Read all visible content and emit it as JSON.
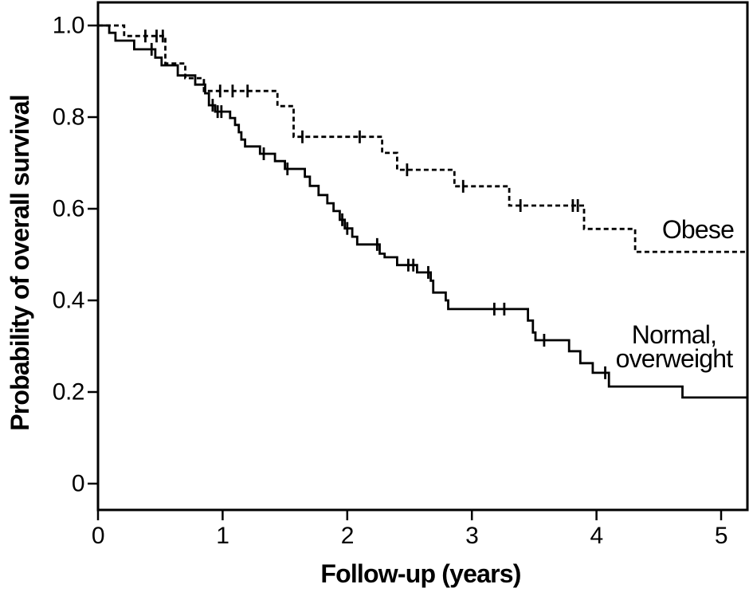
{
  "figure": {
    "background_color": "#ffffff",
    "line_color": "#000000"
  },
  "chart_data": {
    "type": "line",
    "chart_kind": "kaplan_meier_step_curves",
    "title": "",
    "xlabel": "Follow-up (years)",
    "ylabel": "Probability of overall survival",
    "xlim": [
      0,
      5.21
    ],
    "ylim": [
      0,
      1.0
    ],
    "grid": false,
    "legend_position": "on-plot-right",
    "x_ticks": [
      {
        "label": "0",
        "value": 0
      },
      {
        "label": "1",
        "value": 1
      },
      {
        "label": "2",
        "value": 2
      },
      {
        "label": "3",
        "value": 3
      },
      {
        "label": "4",
        "value": 4
      },
      {
        "label": "5",
        "value": 5
      }
    ],
    "y_ticks": [
      {
        "label": "1.0",
        "value": 1.0
      },
      {
        "label": "0.8",
        "value": 0.8
      },
      {
        "label": "0.6",
        "value": 0.6
      },
      {
        "label": "0.4",
        "value": 0.4
      },
      {
        "label": "0.2",
        "value": 0.2
      },
      {
        "label": "0",
        "value": 0.0
      }
    ],
    "series": [
      {
        "name": "Obese",
        "label_lines": [
          "Obese"
        ],
        "line_style": "dashed",
        "color": "#000000",
        "start": [
          0,
          1.0
        ],
        "end_time": 5.21,
        "steps": [
          [
            0.21,
            0.977
          ],
          [
            0.54,
            0.917
          ],
          [
            0.7,
            0.885
          ],
          [
            0.85,
            0.857
          ],
          [
            1.44,
            0.824
          ],
          [
            1.57,
            0.757
          ],
          [
            2.28,
            0.722
          ],
          [
            2.4,
            0.685
          ],
          [
            2.86,
            0.649
          ],
          [
            3.3,
            0.607
          ],
          [
            3.9,
            0.556
          ],
          [
            4.31,
            0.506
          ]
        ],
        "censor_marks": [
          [
            0.38,
            0.977
          ],
          [
            0.47,
            0.977
          ],
          [
            0.52,
            0.977
          ],
          [
            0.98,
            0.857
          ],
          [
            1.08,
            0.857
          ],
          [
            1.2,
            0.857
          ],
          [
            1.64,
            0.757
          ],
          [
            2.1,
            0.757
          ],
          [
            2.48,
            0.685
          ],
          [
            2.93,
            0.649
          ],
          [
            3.39,
            0.607
          ],
          [
            3.81,
            0.607
          ],
          [
            3.85,
            0.607
          ]
        ]
      },
      {
        "name": "Normal, overweight",
        "label_lines": [
          "Normal,",
          "overweight"
        ],
        "line_style": "solid",
        "color": "#000000",
        "start": [
          0,
          1.0
        ],
        "end_time": 5.21,
        "steps": [
          [
            0.09,
            0.984
          ],
          [
            0.14,
            0.967
          ],
          [
            0.29,
            0.948
          ],
          [
            0.46,
            0.93
          ],
          [
            0.51,
            0.913
          ],
          [
            0.64,
            0.891
          ],
          [
            0.78,
            0.871
          ],
          [
            0.86,
            0.852
          ],
          [
            0.89,
            0.826
          ],
          [
            0.94,
            0.812
          ],
          [
            1.06,
            0.798
          ],
          [
            1.1,
            0.783
          ],
          [
            1.13,
            0.767
          ],
          [
            1.15,
            0.751
          ],
          [
            1.18,
            0.736
          ],
          [
            1.3,
            0.72
          ],
          [
            1.42,
            0.704
          ],
          [
            1.5,
            0.687
          ],
          [
            1.66,
            0.67
          ],
          [
            1.7,
            0.65
          ],
          [
            1.77,
            0.63
          ],
          [
            1.84,
            0.612
          ],
          [
            1.89,
            0.595
          ],
          [
            1.94,
            0.576
          ],
          [
            1.98,
            0.557
          ],
          [
            2.04,
            0.539
          ],
          [
            2.08,
            0.522
          ],
          [
            2.26,
            0.502
          ],
          [
            2.3,
            0.494
          ],
          [
            2.4,
            0.477
          ],
          [
            2.56,
            0.461
          ],
          [
            2.67,
            0.443
          ],
          [
            2.69,
            0.417
          ],
          [
            2.79,
            0.4
          ],
          [
            2.81,
            0.381
          ],
          [
            3.45,
            0.356
          ],
          [
            3.49,
            0.33
          ],
          [
            3.51,
            0.313
          ],
          [
            3.78,
            0.289
          ],
          [
            3.87,
            0.263
          ],
          [
            3.97,
            0.242
          ],
          [
            4.1,
            0.212
          ],
          [
            4.69,
            0.188
          ]
        ],
        "censor_marks": [
          [
            0.43,
            0.948
          ],
          [
            0.92,
            0.826
          ],
          [
            0.96,
            0.812
          ],
          [
            0.99,
            0.812
          ],
          [
            1.33,
            0.72
          ],
          [
            1.52,
            0.687
          ],
          [
            1.96,
            0.576
          ],
          [
            2.0,
            0.557
          ],
          [
            2.24,
            0.522
          ],
          [
            2.49,
            0.477
          ],
          [
            2.53,
            0.477
          ],
          [
            2.65,
            0.461
          ],
          [
            3.18,
            0.381
          ],
          [
            3.26,
            0.381
          ],
          [
            3.58,
            0.313
          ],
          [
            4.07,
            0.242
          ]
        ]
      }
    ]
  }
}
